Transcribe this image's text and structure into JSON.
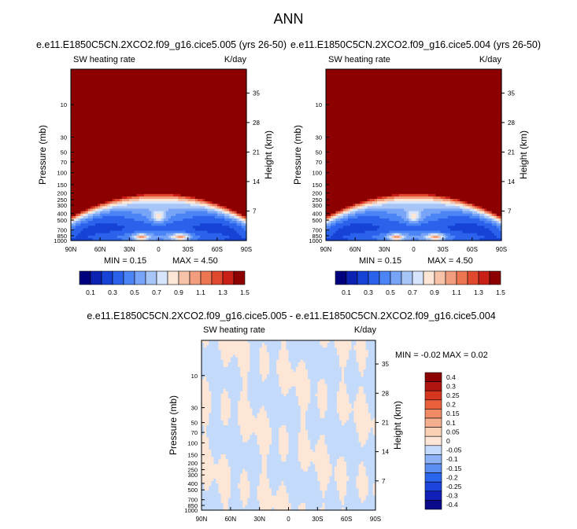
{
  "page_title": "ANN",
  "colors": {
    "palette_15": [
      "#00007e",
      "#0b22b3",
      "#1742d6",
      "#2a62ec",
      "#4b84f5",
      "#77a4f7",
      "#a8c5f7",
      "#d6e5fb",
      "#fde6d5",
      "#f6c3a8",
      "#f29e7e",
      "#ec7552",
      "#e1492f",
      "#c81f17",
      "#8c0000"
    ],
    "palette_diff": [
      "#0a0a8a",
      "#1020b8",
      "#1d45dd",
      "#2b65ee",
      "#5c8ff2",
      "#8db3f6",
      "#c4dafb",
      "#fde6d5",
      "#fad0b7",
      "#f6af8e",
      "#f08a64",
      "#e8603c",
      "#d5361f",
      "#b01510",
      "#8c0000"
    ]
  },
  "chart_data": [
    {
      "type": "heatmap",
      "title": "e.e11.E1850C5CN.2XCO2.f09_g16.cice5.005 (yrs 26-50)",
      "left_label": "SW heating rate",
      "right_label": "K/day",
      "ylabel": "Pressure (mb)",
      "ylabel_right": "Height (km)",
      "x_ticks": [
        "90N",
        "60N",
        "30N",
        "0",
        "30S",
        "60S",
        "90S"
      ],
      "x_range": [
        90,
        -90
      ],
      "y_ticks": [
        "10",
        "30",
        "50",
        "70",
        "100",
        "150",
        "200",
        "250",
        "300",
        "400",
        "500",
        "700",
        "850",
        "1000"
      ],
      "y_ticks_right": [
        "35",
        "28",
        "21",
        "14",
        "7"
      ],
      "y_range_mb": [
        1000,
        3
      ],
      "y_scale": "log",
      "min_label": "MIN =  0.15",
      "max_label": "MAX =  4.50",
      "colorbar_labels": [
        "0.1",
        "0.3",
        "0.5",
        "0.7",
        "0.9",
        "1.1",
        "1.3",
        "1.5"
      ],
      "colorbar_orientation": "horizontal"
    },
    {
      "type": "heatmap",
      "title": "e.e11.E1850C5CN.2XCO2.f09_g16.cice5.004 (yrs 26-50)",
      "left_label": "SW heating rate",
      "right_label": "K/day",
      "ylabel": "Pressure (mb)",
      "ylabel_right": "Height (km)",
      "x_ticks": [
        "90N",
        "60N",
        "30N",
        "0",
        "30S",
        "60S",
        "90S"
      ],
      "x_range": [
        90,
        -90
      ],
      "y_ticks": [
        "10",
        "30",
        "50",
        "70",
        "100",
        "150",
        "200",
        "250",
        "300",
        "400",
        "500",
        "700",
        "850",
        "1000"
      ],
      "y_ticks_right": [
        "35",
        "28",
        "21",
        "14",
        "7"
      ],
      "y_range_mb": [
        1000,
        3
      ],
      "y_scale": "log",
      "min_label": "MIN =  0.15",
      "max_label": "MAX =  4.50",
      "colorbar_labels": [
        "0.1",
        "0.3",
        "0.5",
        "0.7",
        "0.9",
        "1.1",
        "1.3",
        "1.5"
      ],
      "colorbar_orientation": "horizontal"
    },
    {
      "type": "heatmap",
      "title": "e.e11.E1850C5CN.2XCO2.f09_g16.cice5.005 - e.e11.E1850C5CN.2XCO2.f09_g16.cice5.004",
      "left_label": "SW heating rate",
      "right_label": "K/day",
      "ylabel": "Pressure (mb)",
      "ylabel_right": "Height (km)",
      "x_ticks": [
        "90N",
        "60N",
        "30N",
        "0",
        "30S",
        "60S",
        "90S"
      ],
      "x_range": [
        90,
        -90
      ],
      "y_ticks": [
        "10",
        "30",
        "50",
        "70",
        "100",
        "150",
        "200",
        "250",
        "300",
        "400",
        "500",
        "700",
        "850",
        "1000"
      ],
      "y_ticks_right": [
        "35",
        "28",
        "21",
        "14",
        "7"
      ],
      "y_range_mb": [
        1000,
        3
      ],
      "y_scale": "log",
      "min_label": "MIN = -0.02",
      "max_label": "MAX =  0.02",
      "colorbar_labels": [
        "0.4",
        "0.3",
        "0.25",
        "0.2",
        "0.15",
        "0.1",
        "0.05",
        "0",
        "-0.05",
        "-0.1",
        "-0.15",
        "-0.2",
        "-0.25",
        "-0.3",
        "-0.4"
      ],
      "colorbar_orientation": "vertical"
    }
  ]
}
